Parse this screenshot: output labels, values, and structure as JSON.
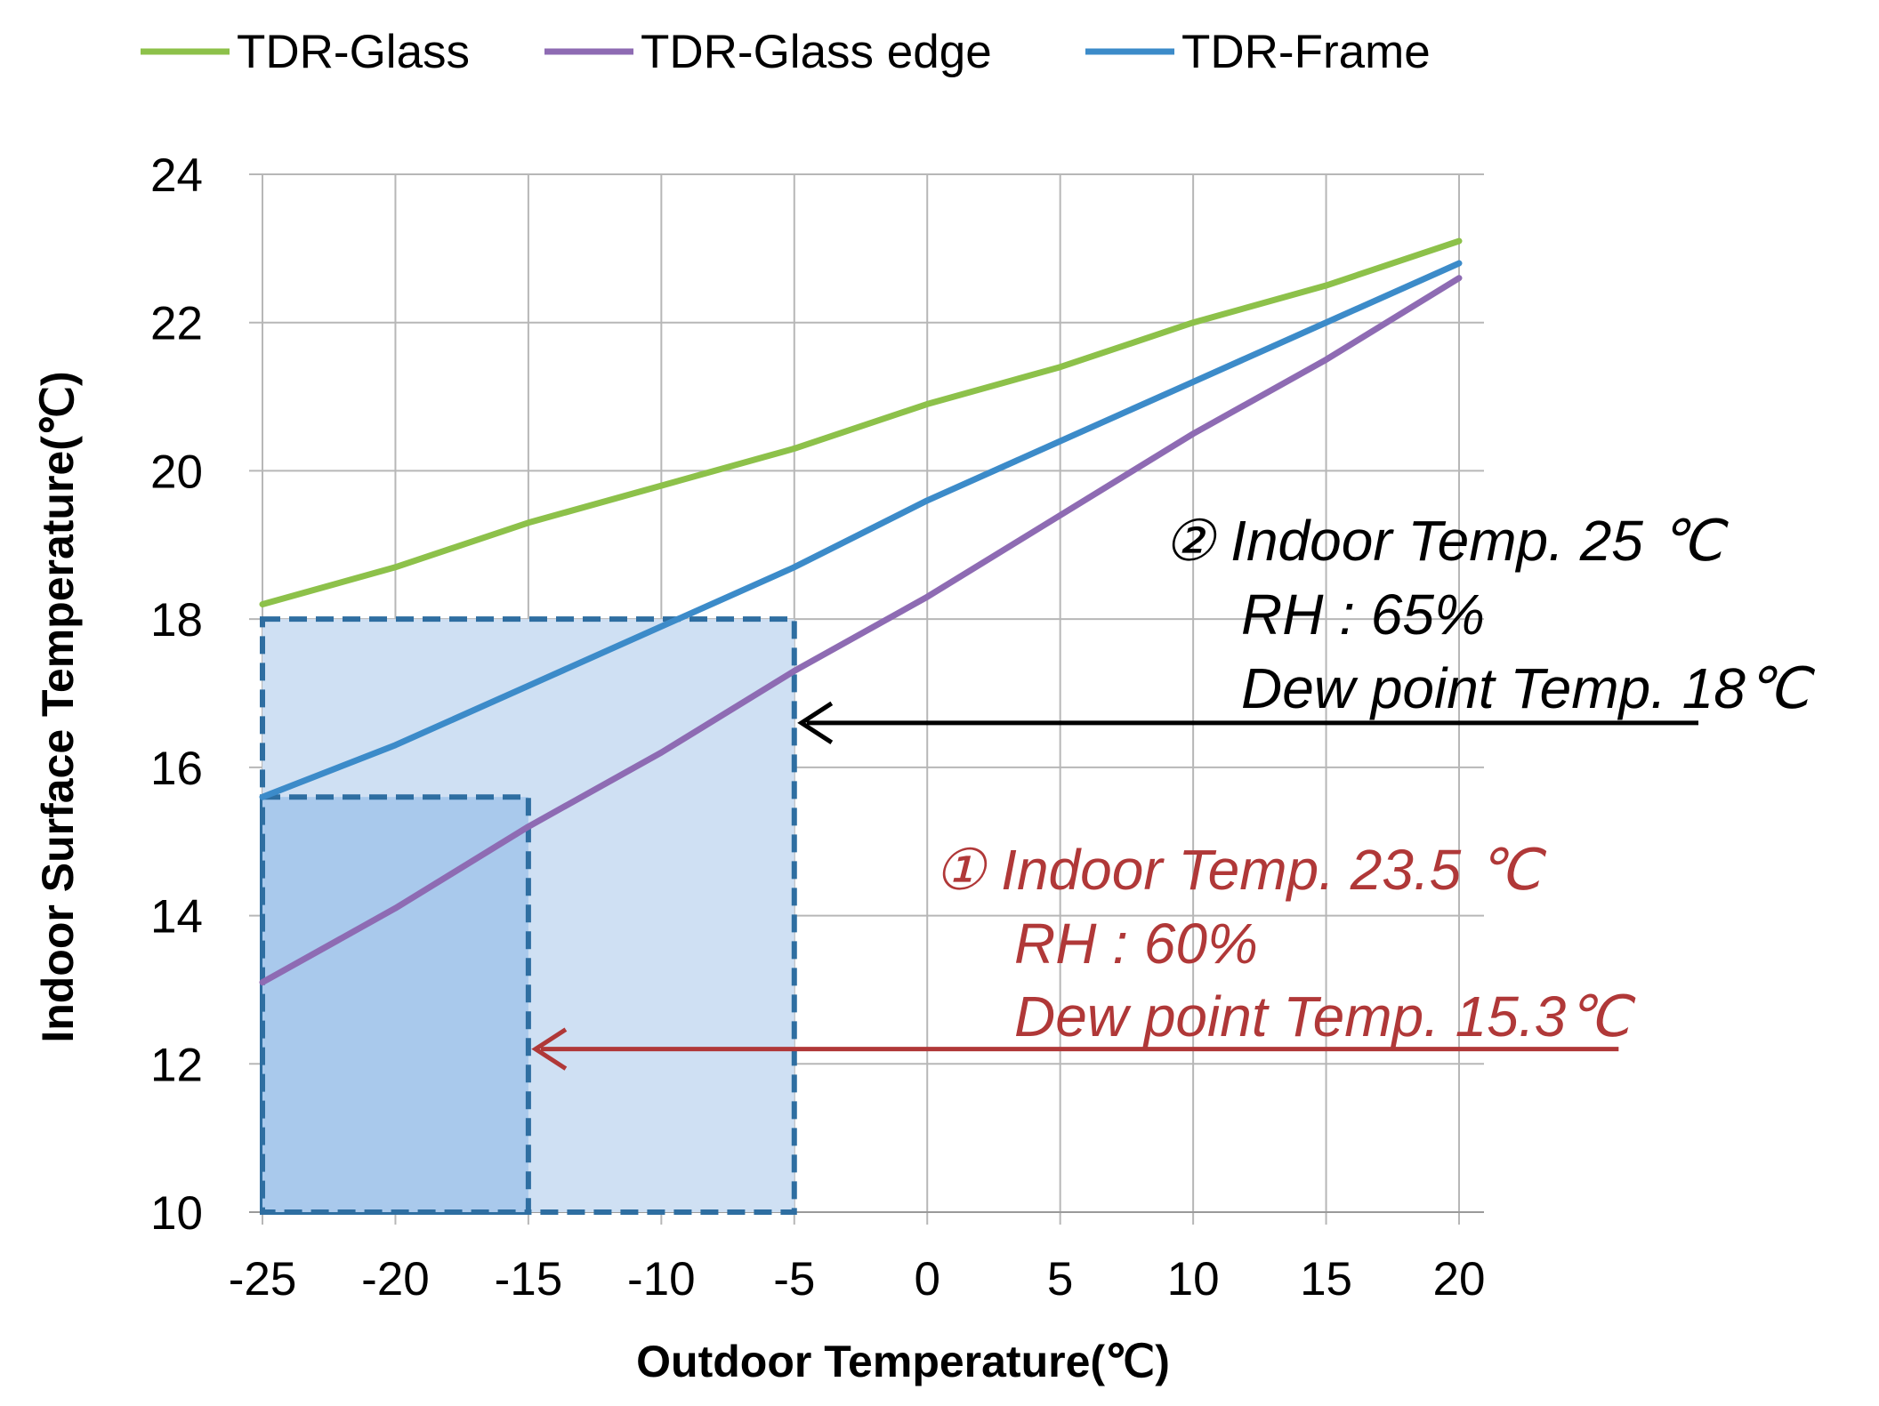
{
  "chart_data": {
    "type": "line",
    "xlabel": "Outdoor Temperature(℃)",
    "ylabel": "Indoor Surface Temperature(℃)",
    "xlim": [
      -25,
      20
    ],
    "ylim": [
      10,
      24
    ],
    "x_ticks": [
      "-25",
      "-20",
      "-15",
      "-10",
      "-5",
      "0",
      "5",
      "10",
      "15",
      "20"
    ],
    "y_ticks": [
      "10",
      "12",
      "14",
      "16",
      "18",
      "20",
      "22",
      "24"
    ],
    "grid": true,
    "legend_position": "top",
    "x": [
      -25,
      -20,
      -15,
      -10,
      -5,
      0,
      5,
      10,
      15,
      20
    ],
    "series": [
      {
        "name": "TDR-Glass",
        "color": "#8dc14a",
        "values": [
          18.2,
          18.7,
          19.3,
          19.8,
          20.3,
          20.9,
          21.4,
          22.0,
          22.5,
          23.1
        ]
      },
      {
        "name": "TDR-Glass edge",
        "color": "#8e6bb3",
        "values": [
          13.1,
          14.1,
          15.2,
          16.2,
          17.3,
          18.3,
          19.4,
          20.5,
          21.5,
          22.6
        ]
      },
      {
        "name": "TDR-Frame",
        "color": "#3c8bc9",
        "values": [
          15.6,
          16.3,
          17.1,
          17.9,
          18.7,
          19.6,
          20.4,
          21.2,
          22.0,
          22.8
        ]
      }
    ],
    "regions": [
      {
        "x": [
          -25,
          -5
        ],
        "y": [
          10,
          18
        ],
        "fill": "#cfe0f3",
        "border": "#2e6ea1"
      },
      {
        "x": [
          -25,
          -15
        ],
        "y": [
          10,
          15.6
        ],
        "fill": "#a9c9ec",
        "border": "#2e6ea1"
      }
    ],
    "annotations": [
      {
        "color": "#000000",
        "lines": [
          "② Indoor Temp. 25 ℃",
          "RH : 65%",
          "Dew point Temp. 18℃"
        ],
        "arrow_y": 16.6,
        "arrow_to_x": -5,
        "arrow_from_x": 29
      },
      {
        "color": "#b03838",
        "lines": [
          "① Indoor Temp. 23.5 ℃",
          "RH : 60%",
          "Dew point Temp. 15.3℃"
        ],
        "arrow_y": 12.2,
        "arrow_to_x": -15,
        "arrow_from_x": 26
      }
    ]
  }
}
